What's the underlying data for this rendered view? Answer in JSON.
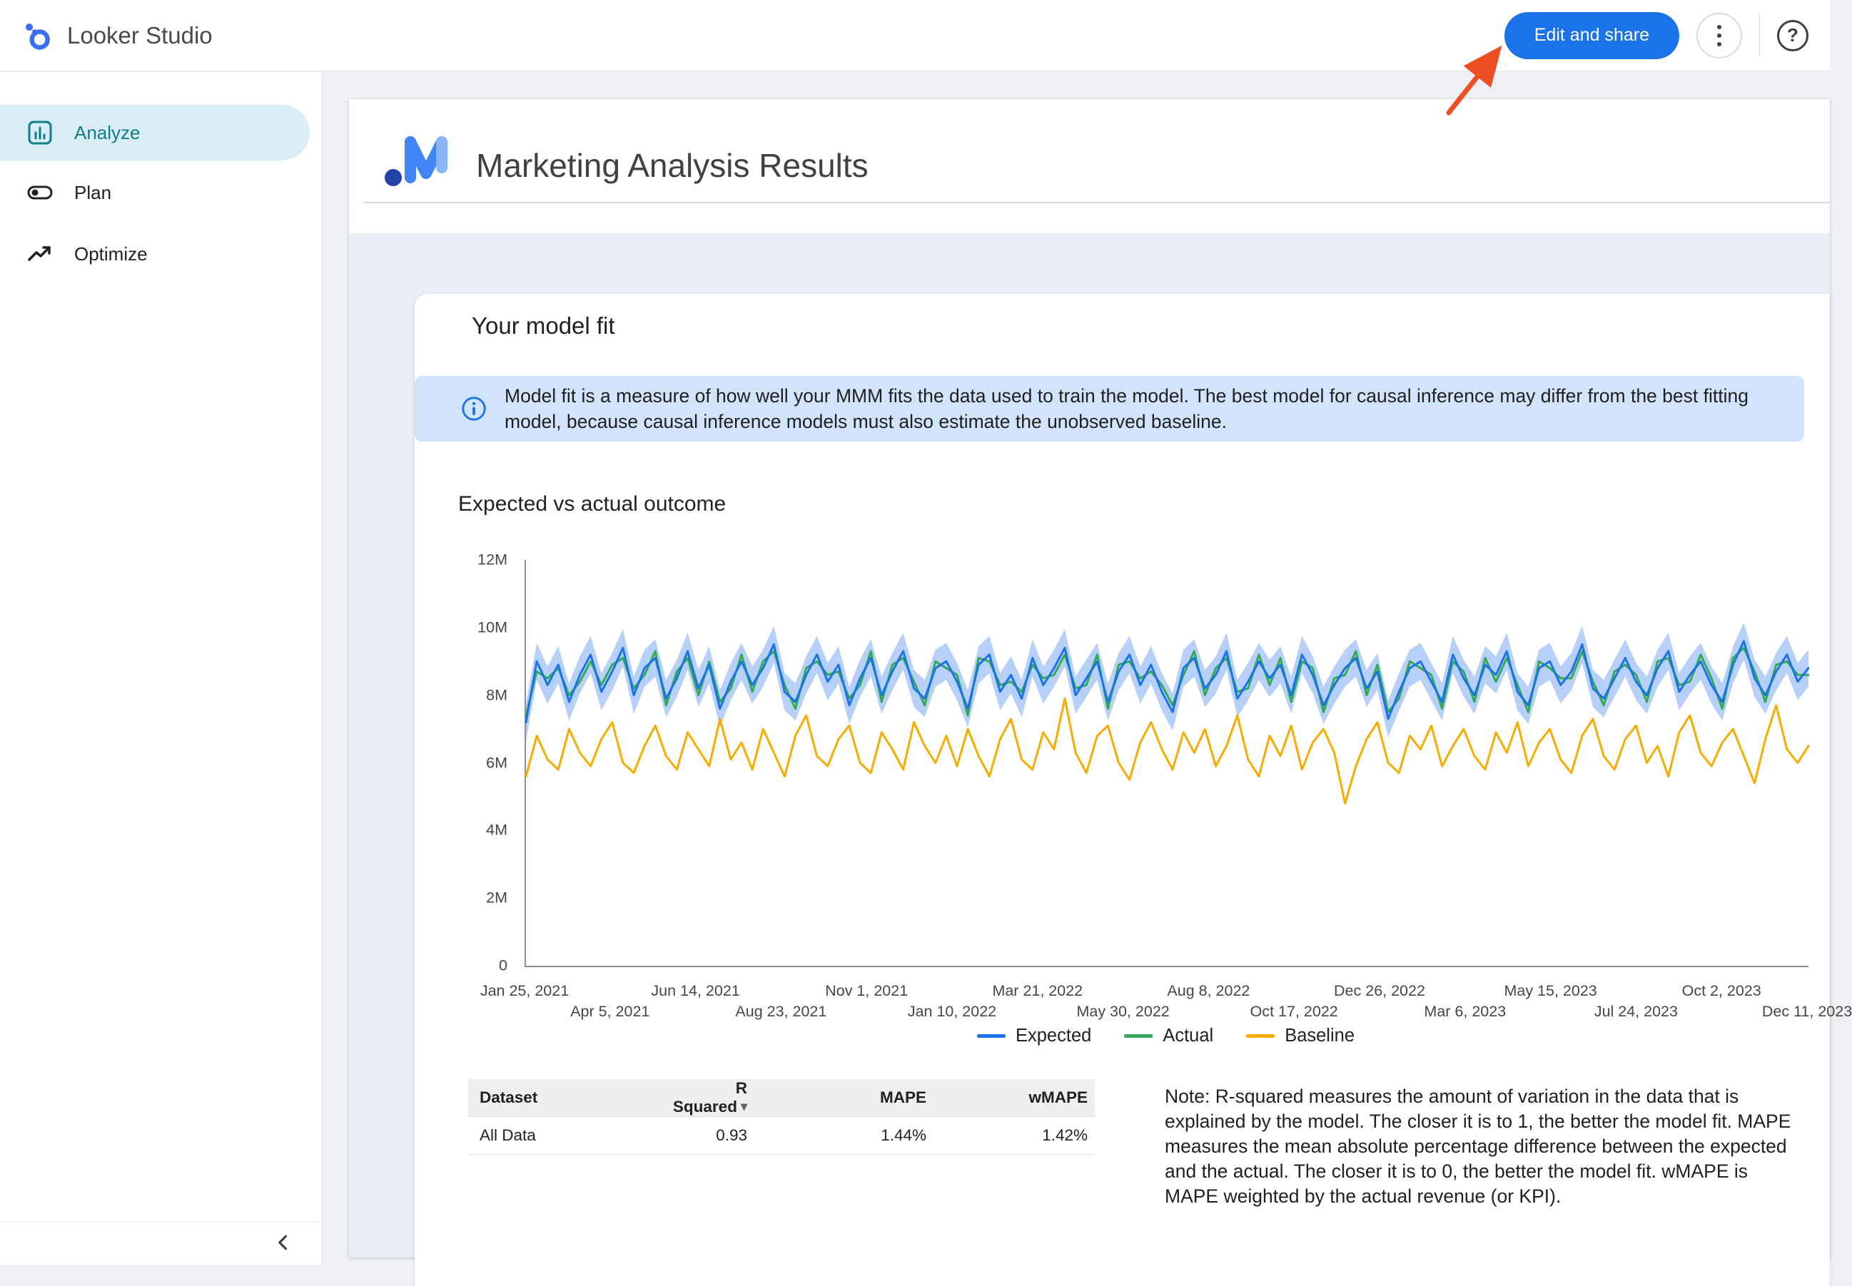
{
  "app": {
    "name": "Looker Studio",
    "topbar": {
      "edit_share_label": "Edit and share",
      "more_icon": "kebab-menu",
      "help_icon": "help-question"
    }
  },
  "sidebar": {
    "items": [
      {
        "label": "Analyze",
        "icon": "analyze-chart-icon",
        "active": true
      },
      {
        "label": "Plan",
        "icon": "plan-toggle-icon",
        "active": false
      },
      {
        "label": "Optimize",
        "icon": "trending-up-icon",
        "active": false
      }
    ],
    "collapse_icon": "chevron-left"
  },
  "report": {
    "title": "Marketing Analysis Results",
    "model_fit_card": {
      "title": "Your model fit",
      "info_text": "Model fit is a measure of how well your MMM fits the data used to train the model. The best model for causal inference may differ from the best fitting model, because causal inference models must also estimate the unobserved baseline.",
      "section_title": "Expected vs actual outcome",
      "note_text": "Note: R-squared measures the amount of variation in the data that is explained by the model. The closer it is to 1, the better the model fit. MAPE measures the mean absolute percentage difference between the expected and the actual. The closer it is to 0, the better the model fit. wMAPE is MAPE weighted by the actual revenue (or KPI)."
    },
    "fit_table": {
      "columns": [
        "Dataset",
        "R Squared",
        "MAPE",
        "wMAPE"
      ],
      "sorted_by": "R Squared",
      "sort_icon": "arrow-drop-down",
      "rows": [
        [
          "All Data",
          "0.93",
          "1.44%",
          "1.42%"
        ]
      ]
    }
  },
  "annotation": {
    "type": "arrow",
    "target": "Edit and share button",
    "color": "#ef4e23"
  },
  "colors": {
    "accent_blue": "#1a73e8",
    "active_nav_bg": "#d9edf4",
    "active_nav_text": "#0e7c8b",
    "info_banner_bg": "#d2e3fc",
    "card_backdrop": "#e9edf6",
    "expected_line": "#1a73e8",
    "actual_line": "#34a853",
    "baseline_line": "#f9ab00",
    "uncertainty_band": "#aecbfa"
  },
  "chart_data": {
    "type": "line",
    "title": "Expected vs actual outcome",
    "unit": "millions",
    "grid": false,
    "legend_position": "bottom",
    "ylim": [
      0,
      12
    ],
    "ytick_values": [
      12,
      10,
      8,
      6,
      4,
      2,
      0
    ],
    "ytick_labels": [
      "12M",
      "10M",
      "8M",
      "6M",
      "4M",
      "2M",
      "0"
    ],
    "xtick_labels": [
      "Jan 25, 2021",
      "Apr 5, 2021",
      "Jun 14, 2021",
      "Aug 23, 2021",
      "Nov 1, 2021",
      "Jan 10, 2022",
      "Mar 21, 2022",
      "May 30, 2022",
      "Aug 8, 2022",
      "Oct 17, 2022",
      "Dec 26, 2022",
      "Mar 6, 2023",
      "May 15, 2023",
      "Jul 24, 2023",
      "Oct 2, 2023",
      "Dec 11, 2023"
    ],
    "uncertainty_band": {
      "series": "Expected",
      "halfwidth": 0.55,
      "color": "#aecbfa"
    },
    "series": [
      {
        "name": "Expected",
        "color": "#1a73e8",
        "values": [
          7.2,
          9.0,
          8.3,
          8.9,
          7.8,
          8.6,
          9.2,
          8.1,
          8.7,
          9.4,
          8.0,
          8.8,
          9.1,
          7.9,
          8.5,
          9.3,
          8.2,
          8.9,
          7.6,
          8.4,
          9.0,
          8.3,
          8.8,
          9.5,
          8.1,
          7.8,
          8.6,
          9.2,
          8.4,
          8.9,
          7.7,
          8.5,
          9.1,
          8.0,
          8.7,
          9.3,
          8.2,
          7.9,
          8.8,
          9.0,
          8.4,
          7.6,
          8.9,
          9.2,
          8.1,
          8.6,
          7.9,
          9.1,
          8.3,
          8.8,
          9.4,
          8.0,
          8.5,
          9.0,
          7.8,
          8.7,
          9.2,
          8.3,
          8.9,
          8.1,
          7.5,
          8.8,
          9.1,
          8.2,
          8.6,
          9.3,
          7.9,
          8.4,
          9.0,
          8.5,
          8.9,
          8.0,
          9.2,
          8.6,
          7.7,
          8.3,
          8.8,
          9.1,
          8.2,
          8.7,
          7.3,
          8.1,
          8.8,
          9.0,
          8.4,
          7.8,
          9.2,
          8.5,
          8.0,
          8.9,
          8.6,
          9.3,
          8.1,
          7.7,
          8.8,
          9.0,
          8.3,
          8.7,
          9.5,
          8.2,
          7.9,
          8.5,
          9.1,
          8.4,
          8.0,
          8.8,
          9.3,
          8.1,
          8.6,
          9.0,
          8.3,
          7.8,
          8.9,
          9.6,
          8.5,
          8.0,
          8.7,
          9.2,
          8.4,
          8.8
        ]
      },
      {
        "name": "Actual",
        "color": "#34a853",
        "values": [
          7.4,
          8.7,
          8.5,
          8.8,
          8.0,
          8.4,
          9.0,
          8.3,
          8.9,
          9.1,
          8.2,
          8.6,
          9.3,
          7.7,
          8.7,
          9.1,
          8.0,
          9.0,
          7.8,
          8.2,
          9.2,
          8.1,
          9.0,
          9.3,
          8.3,
          7.6,
          8.8,
          9.0,
          8.6,
          8.7,
          7.9,
          8.3,
          9.3,
          7.8,
          8.9,
          9.1,
          8.4,
          7.7,
          9.0,
          8.8,
          8.6,
          7.4,
          9.1,
          9.0,
          8.3,
          8.4,
          8.1,
          8.9,
          8.5,
          8.6,
          9.2,
          8.2,
          8.3,
          9.2,
          7.6,
          8.9,
          9.0,
          8.5,
          8.7,
          8.3,
          7.7,
          8.6,
          9.3,
          8.0,
          8.8,
          9.1,
          8.1,
          8.2,
          9.2,
          8.3,
          9.1,
          7.8,
          9.0,
          8.8,
          7.5,
          8.5,
          8.6,
          9.3,
          8.0,
          8.9,
          7.5,
          7.9,
          9.0,
          8.8,
          8.6,
          7.6,
          9.0,
          8.7,
          7.8,
          9.1,
          8.4,
          9.1,
          8.3,
          7.5,
          9.0,
          8.8,
          8.5,
          8.5,
          9.3,
          8.4,
          7.7,
          8.7,
          8.9,
          8.6,
          7.8,
          9.0,
          9.1,
          8.3,
          8.4,
          9.2,
          8.5,
          7.6,
          9.1,
          9.4,
          8.7,
          7.8,
          8.9,
          9.0,
          8.6,
          8.6
        ]
      },
      {
        "name": "Baseline",
        "color": "#f9ab00",
        "values": [
          5.6,
          6.8,
          6.1,
          5.8,
          7.0,
          6.3,
          5.9,
          6.7,
          7.2,
          6.0,
          5.7,
          6.5,
          7.1,
          6.2,
          5.8,
          6.9,
          6.4,
          5.9,
          7.3,
          6.1,
          6.6,
          5.8,
          7.0,
          6.3,
          5.6,
          6.8,
          7.4,
          6.2,
          5.9,
          6.7,
          7.1,
          6.0,
          5.7,
          6.9,
          6.4,
          5.8,
          7.2,
          6.5,
          6.0,
          6.8,
          5.9,
          7.0,
          6.2,
          5.6,
          6.7,
          7.3,
          6.1,
          5.8,
          6.9,
          6.4,
          7.9,
          6.3,
          5.7,
          6.8,
          7.1,
          6.0,
          5.5,
          6.6,
          7.2,
          6.4,
          5.8,
          6.9,
          6.3,
          7.0,
          5.9,
          6.5,
          7.4,
          6.1,
          5.6,
          6.8,
          6.2,
          7.1,
          5.8,
          6.6,
          7.0,
          6.3,
          4.8,
          5.9,
          6.7,
          7.2,
          6.0,
          5.7,
          6.8,
          6.4,
          7.1,
          5.9,
          6.5,
          7.0,
          6.2,
          5.8,
          6.9,
          6.3,
          7.2,
          5.9,
          6.6,
          7.0,
          6.1,
          5.7,
          6.8,
          7.3,
          6.2,
          5.8,
          6.7,
          7.1,
          6.0,
          6.5,
          5.6,
          6.9,
          7.4,
          6.3,
          5.9,
          6.6,
          7.0,
          6.2,
          5.4,
          6.7,
          7.7,
          6.4,
          6.0,
          6.5
        ]
      }
    ]
  }
}
